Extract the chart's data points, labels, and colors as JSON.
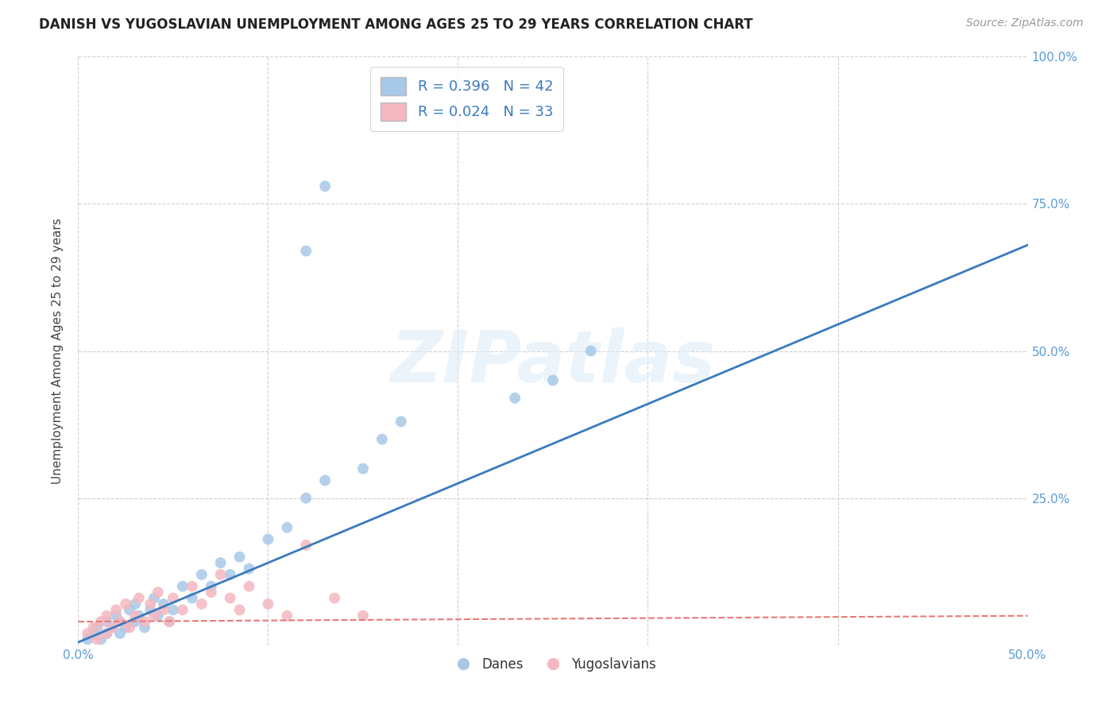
{
  "title": "DANISH VS YUGOSLAVIAN UNEMPLOYMENT AMONG AGES 25 TO 29 YEARS CORRELATION CHART",
  "source": "Source: ZipAtlas.com",
  "ylabel": "Unemployment Among Ages 25 to 29 years",
  "xlim": [
    0.0,
    0.5
  ],
  "ylim": [
    0.0,
    1.0
  ],
  "danes_R": 0.396,
  "danes_N": 42,
  "yugo_R": 0.024,
  "yugo_N": 33,
  "danes_color": "#a8c8e8",
  "yugo_color": "#f4b8c0",
  "danes_line_color": "#3a7abf",
  "yugo_line_color": "#e87878",
  "watermark_text": "ZIPatlas",
  "danes_x": [
    0.005,
    0.008,
    0.01,
    0.012,
    0.015,
    0.015,
    0.018,
    0.02,
    0.022,
    0.022,
    0.025,
    0.027,
    0.03,
    0.03,
    0.032,
    0.035,
    0.038,
    0.04,
    0.042,
    0.045,
    0.048,
    0.05,
    0.055,
    0.06,
    0.065,
    0.07,
    0.075,
    0.08,
    0.085,
    0.09,
    0.1,
    0.11,
    0.12,
    0.13,
    0.15,
    0.16,
    0.17,
    0.23,
    0.25,
    0.27,
    0.12,
    0.13
  ],
  "danes_y": [
    0.01,
    0.02,
    0.03,
    0.01,
    0.04,
    0.02,
    0.03,
    0.05,
    0.02,
    0.04,
    0.03,
    0.06,
    0.04,
    0.07,
    0.05,
    0.03,
    0.06,
    0.08,
    0.05,
    0.07,
    0.04,
    0.06,
    0.1,
    0.08,
    0.12,
    0.1,
    0.14,
    0.12,
    0.15,
    0.13,
    0.18,
    0.2,
    0.25,
    0.28,
    0.3,
    0.35,
    0.38,
    0.42,
    0.45,
    0.5,
    0.67,
    0.78
  ],
  "yugo_x": [
    0.005,
    0.008,
    0.01,
    0.012,
    0.015,
    0.015,
    0.018,
    0.02,
    0.022,
    0.025,
    0.027,
    0.03,
    0.032,
    0.035,
    0.038,
    0.04,
    0.042,
    0.045,
    0.048,
    0.05,
    0.055,
    0.06,
    0.065,
    0.07,
    0.075,
    0.08,
    0.085,
    0.09,
    0.1,
    0.11,
    0.12,
    0.135,
    0.15
  ],
  "yugo_y": [
    0.02,
    0.03,
    0.01,
    0.04,
    0.02,
    0.05,
    0.03,
    0.06,
    0.04,
    0.07,
    0.03,
    0.05,
    0.08,
    0.04,
    0.07,
    0.05,
    0.09,
    0.06,
    0.04,
    0.08,
    0.06,
    0.1,
    0.07,
    0.09,
    0.12,
    0.08,
    0.06,
    0.1,
    0.07,
    0.05,
    0.17,
    0.08,
    0.05
  ],
  "background_color": "#ffffff",
  "grid_color": "#cccccc"
}
